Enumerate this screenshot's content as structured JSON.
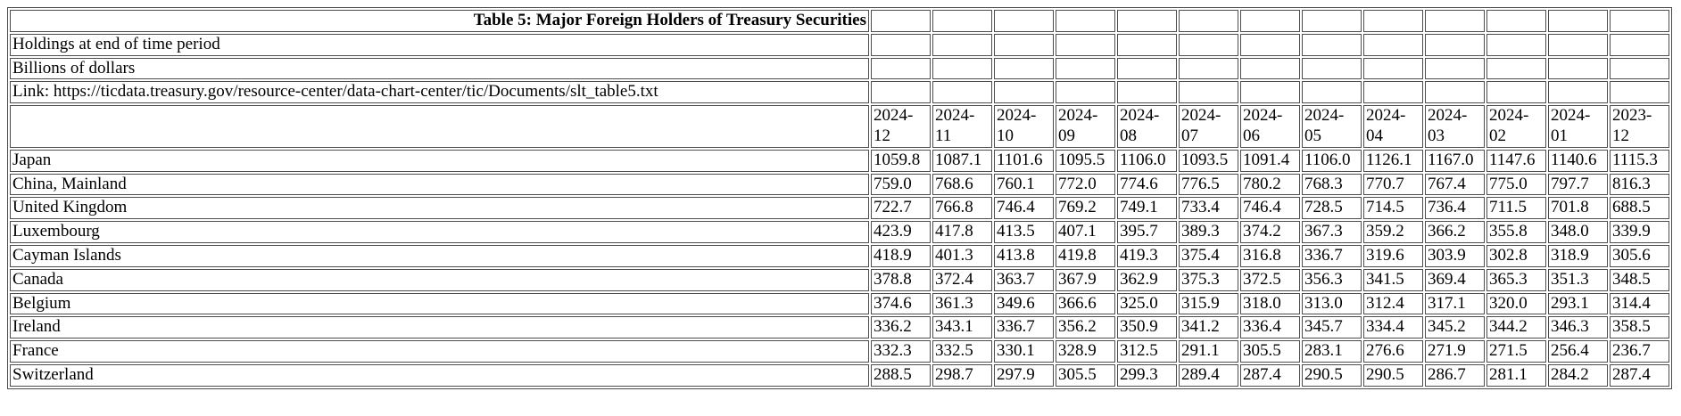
{
  "table": {
    "title": "Table 5: Major Foreign Holders of Treasury Securities",
    "note_holdings": "Holdings at end of time period",
    "note_units": "Billions of dollars",
    "link_line": "Link: https://ticdata.treasury.gov/resource-center/data-chart-center/tic/Documents/slt_table5.txt"
  },
  "chart_data": {
    "type": "table",
    "title": "Table 5: Major Foreign Holders of Treasury Securities",
    "subtitle": "Holdings at end of time period",
    "units": "Billions of dollars",
    "source_link": "https://ticdata.treasury.gov/resource-center/data-chart-center/tic/Documents/slt_table5.txt",
    "columns": [
      "2024-12",
      "2024-11",
      "2024-10",
      "2024-09",
      "2024-08",
      "2024-07",
      "2024-06",
      "2024-05",
      "2024-04",
      "2024-03",
      "2024-02",
      "2024-01",
      "2023-12"
    ],
    "rows": [
      {
        "label": "Japan",
        "values": [
          1059.8,
          1087.1,
          1101.6,
          1095.5,
          1106.0,
          1093.5,
          1091.4,
          1106.0,
          1126.1,
          1167.0,
          1147.6,
          1140.6,
          1115.3
        ]
      },
      {
        "label": "China, Mainland",
        "values": [
          759.0,
          768.6,
          760.1,
          772.0,
          774.6,
          776.5,
          780.2,
          768.3,
          770.7,
          767.4,
          775.0,
          797.7,
          816.3
        ]
      },
      {
        "label": "United Kingdom",
        "values": [
          722.7,
          766.8,
          746.4,
          769.2,
          749.1,
          733.4,
          746.4,
          728.5,
          714.5,
          736.4,
          711.5,
          701.8,
          688.5
        ]
      },
      {
        "label": "Luxembourg",
        "values": [
          423.9,
          417.8,
          413.5,
          407.1,
          395.7,
          389.3,
          374.2,
          367.3,
          359.2,
          366.2,
          355.8,
          348.0,
          339.9
        ]
      },
      {
        "label": "Cayman Islands",
        "values": [
          418.9,
          401.3,
          413.8,
          419.8,
          419.3,
          375.4,
          316.8,
          336.7,
          319.6,
          303.9,
          302.8,
          318.9,
          305.6
        ]
      },
      {
        "label": "Canada",
        "values": [
          378.8,
          372.4,
          363.7,
          367.9,
          362.9,
          375.3,
          372.5,
          356.3,
          341.5,
          369.4,
          365.3,
          351.3,
          348.5
        ]
      },
      {
        "label": "Belgium",
        "values": [
          374.6,
          361.3,
          349.6,
          366.6,
          325.0,
          315.9,
          318.0,
          313.0,
          312.4,
          317.1,
          320.0,
          293.1,
          314.4
        ]
      },
      {
        "label": "Ireland",
        "values": [
          336.2,
          343.1,
          336.7,
          356.2,
          350.9,
          341.2,
          336.4,
          345.7,
          334.4,
          345.2,
          344.2,
          346.3,
          358.5
        ]
      },
      {
        "label": "France",
        "values": [
          332.3,
          332.5,
          330.1,
          328.9,
          312.5,
          291.1,
          305.5,
          283.1,
          276.6,
          271.9,
          271.5,
          256.4,
          236.7
        ]
      },
      {
        "label": "Switzerland",
        "values": [
          288.5,
          298.7,
          297.9,
          305.5,
          299.3,
          289.4,
          287.4,
          290.5,
          290.5,
          286.7,
          281.1,
          284.2,
          287.4
        ]
      }
    ]
  }
}
